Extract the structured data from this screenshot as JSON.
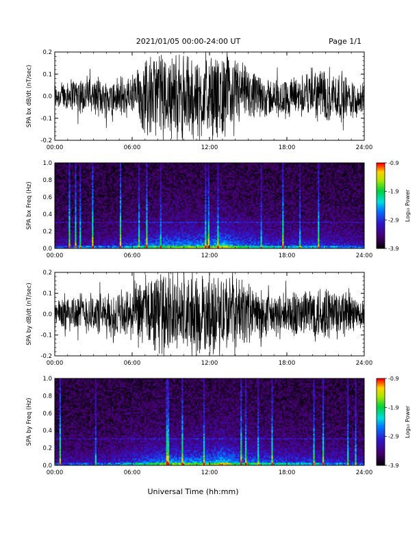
{
  "header": {
    "title": "2021/01/05  00:00-24:00 UT",
    "page": "Page 1/1"
  },
  "footer": {
    "xlabel": "Universal Time (hh:mm)"
  },
  "chart_data": [
    {
      "type": "line",
      "ylabel": "SPA bx dB/dt (nT/sec)",
      "xlim": [
        "00:00",
        "24:00"
      ],
      "ylim": [
        -0.2,
        0.2
      ],
      "xticks": [
        "00:00",
        "06:00",
        "12:00",
        "18:00",
        "24:00"
      ],
      "yticks": [
        "-0.2",
        "-0.1",
        "0.0",
        "0.1",
        "0.2"
      ],
      "envelope_hours": [
        0,
        1,
        2,
        3,
        4,
        5,
        6,
        7,
        8,
        9,
        10,
        11,
        12,
        13,
        14,
        15,
        16,
        17,
        18,
        19,
        20,
        21,
        22,
        23,
        24
      ],
      "envelope_amplitude": [
        0.07,
        0.08,
        0.1,
        0.09,
        0.1,
        0.11,
        0.12,
        0.2,
        0.22,
        0.22,
        0.22,
        0.22,
        0.2,
        0.22,
        0.2,
        0.13,
        0.11,
        0.1,
        0.1,
        0.11,
        0.13,
        0.15,
        0.13,
        0.11,
        0.08
      ]
    },
    {
      "type": "heatmap",
      "ylabel": "SPA bx Freq (Hz)",
      "colorbar_label": "Log₁₀ Power",
      "colorbar_ticks": [
        "-0.9",
        "-1.9",
        "-2.9",
        "-3.9"
      ],
      "clim": [
        -3.9,
        -0.9
      ],
      "xlim": [
        "00:00",
        "24:00"
      ],
      "ylim": [
        0.0,
        1.0
      ],
      "xticks": [
        "00:00",
        "06:00",
        "12:00",
        "18:00",
        "24:00"
      ],
      "yticks": [
        "0.0",
        "0.2",
        "0.4",
        "0.6",
        "0.8",
        "1.0"
      ],
      "activity_hours": [
        0,
        2,
        4,
        6,
        8,
        10,
        12,
        13,
        14,
        16,
        18,
        20,
        22,
        24
      ],
      "activity_level": [
        0.3,
        0.35,
        0.35,
        0.55,
        0.75,
        0.8,
        0.8,
        1.0,
        0.75,
        0.6,
        0.5,
        0.5,
        0.45,
        0.35
      ]
    },
    {
      "type": "line",
      "ylabel": "SPA by dB/dt (nT/sec)",
      "xlim": [
        "00:00",
        "24:00"
      ],
      "ylim": [
        -0.2,
        0.2
      ],
      "xticks": [
        "00:00",
        "06:00",
        "12:00",
        "18:00",
        "24:00"
      ],
      "yticks": [
        "-0.2",
        "-0.1",
        "0.0",
        "0.1",
        "0.2"
      ],
      "envelope_hours": [
        0,
        1,
        2,
        3,
        4,
        5,
        6,
        7,
        8,
        9,
        10,
        11,
        12,
        13,
        14,
        15,
        16,
        17,
        18,
        19,
        20,
        21,
        22,
        23,
        24
      ],
      "envelope_amplitude": [
        0.08,
        0.1,
        0.11,
        0.11,
        0.12,
        0.13,
        0.15,
        0.21,
        0.22,
        0.22,
        0.22,
        0.22,
        0.21,
        0.22,
        0.21,
        0.16,
        0.13,
        0.12,
        0.12,
        0.13,
        0.15,
        0.16,
        0.14,
        0.11,
        0.07
      ]
    },
    {
      "type": "heatmap",
      "ylabel": "SPA by Freq (Hz)",
      "colorbar_label": "Log₁₀ Power",
      "colorbar_ticks": [
        "-0.9",
        "-1.9",
        "-2.9",
        "-3.9"
      ],
      "clim": [
        -3.9,
        -0.9
      ],
      "xlim": [
        "00:00",
        "24:00"
      ],
      "ylim": [
        0.0,
        1.0
      ],
      "xticks": [
        "00:00",
        "06:00",
        "12:00",
        "18:00",
        "24:00"
      ],
      "yticks": [
        "0.0",
        "0.2",
        "0.4",
        "0.6",
        "0.8",
        "1.0"
      ],
      "activity_hours": [
        0,
        2,
        4,
        6,
        8,
        10,
        12,
        13,
        14,
        16,
        18,
        20,
        22,
        24
      ],
      "activity_level": [
        0.3,
        0.35,
        0.35,
        0.55,
        0.75,
        0.8,
        0.8,
        1.0,
        0.75,
        0.65,
        0.55,
        0.5,
        0.45,
        0.35
      ]
    }
  ]
}
